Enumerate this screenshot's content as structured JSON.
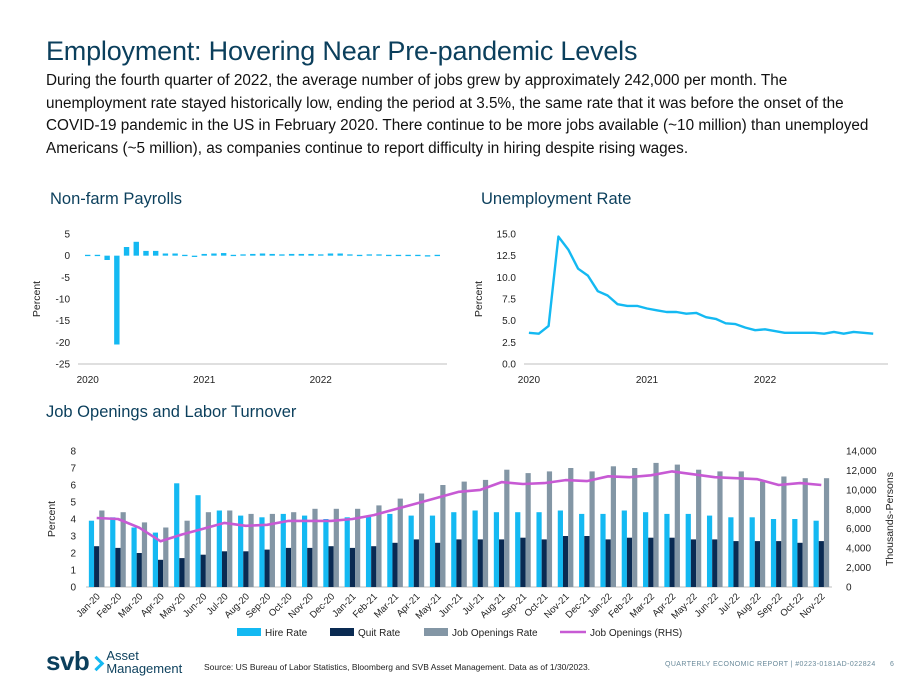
{
  "title": "Employment: Hovering Near Pre-pandemic Levels",
  "intro": "During the fourth quarter of 2022, the average number of jobs grew by approximately 242,000 per month. The unemployment rate stayed historically low, ending the period at 3.5%, the same rate that it was before the onset of the COVID-19 pandemic in the US in February 2020. There continue to be more jobs available (~10 million) than unemployed Americans (~5 million), as companies continue to report difficulty in hiring despite rising wages.",
  "footer": {
    "logo_main": "svb",
    "logo_line1": "Asset",
    "logo_line2": "Management",
    "source": "Source: US Bureau of Labor Statistics, Bloomberg and SVB Asset Management. Data as of 1/30/2023.",
    "report": "QUARTERLY ECONOMIC REPORT | #0223-0181AD-022824",
    "page": "6"
  },
  "colors": {
    "heading": "#0b3f5c",
    "bright_blue": "#14b9f2",
    "navy": "#0a2a52",
    "gray": "#8396a5",
    "purple": "#c75ad4"
  },
  "chart_data": [
    {
      "id": "payrolls",
      "type": "bar",
      "title": "Non-farm Payrolls",
      "ylabel": "Percent",
      "ylim": [
        -25,
        5
      ],
      "yticks": [
        "5",
        "0",
        "-5",
        "-10",
        "-15",
        "-20",
        "-25"
      ],
      "ytick_values": [
        5,
        0,
        -5,
        -10,
        -15,
        -20,
        -25
      ],
      "xtick_labels": [
        "2020",
        "2021",
        "2022"
      ],
      "xtick_index": [
        0,
        12,
        24
      ],
      "values": [
        0.2,
        0.2,
        -1.0,
        -20.5,
        2.0,
        3.2,
        1.1,
        1.1,
        0.5,
        0.5,
        0.2,
        -0.2,
        0.4,
        0.5,
        0.6,
        0.2,
        0.3,
        0.4,
        0.5,
        0.4,
        0.3,
        0.4,
        0.4,
        0.4,
        0.3,
        0.5,
        0.5,
        0.3,
        0.2,
        0.3,
        0.3,
        0.2,
        0.2,
        0.2,
        0.2,
        0.1,
        0.2
      ]
    },
    {
      "id": "unemployment",
      "type": "line",
      "title": "Unemployment Rate",
      "ylabel": "Percent",
      "ylim": [
        0,
        15
      ],
      "yticks": [
        "15.0",
        "12.5",
        "10.0",
        "7.5",
        "5.0",
        "2.5",
        "0.0"
      ],
      "ytick_values": [
        15,
        12.5,
        10,
        7.5,
        5,
        2.5,
        0
      ],
      "xtick_labels": [
        "2020",
        "2021",
        "2022"
      ],
      "xtick_index": [
        0,
        12,
        24
      ],
      "values": [
        3.6,
        3.5,
        4.4,
        14.7,
        13.2,
        11.0,
        10.2,
        8.4,
        7.9,
        6.9,
        6.7,
        6.7,
        6.4,
        6.2,
        6.0,
        6.0,
        5.8,
        5.9,
        5.4,
        5.2,
        4.7,
        4.6,
        4.2,
        3.9,
        4.0,
        3.8,
        3.6,
        3.6,
        3.6,
        3.6,
        3.5,
        3.7,
        3.5,
        3.7,
        3.6,
        3.5
      ]
    },
    {
      "id": "jolts",
      "type": "bar",
      "title": "Job Openings and Labor Turnover",
      "ylabel": "Percent",
      "y2label": "Thousands-Persons",
      "ylim": [
        0,
        8
      ],
      "y2lim": [
        0,
        14000
      ],
      "yticks": [
        "8",
        "7",
        "6",
        "5",
        "4",
        "3",
        "2",
        "1",
        "0"
      ],
      "ytick_values": [
        8,
        7,
        6,
        5,
        4,
        3,
        2,
        1,
        0
      ],
      "y2ticks": [
        "14,000",
        "12,000",
        "10,000",
        "8,000",
        "6,000",
        "4,000",
        "2,000",
        "0"
      ],
      "y2tick_values": [
        14000,
        12000,
        10000,
        8000,
        6000,
        4000,
        2000,
        0
      ],
      "categories": [
        "Jan-20",
        "Feb-20",
        "Mar-20",
        "Apr-20",
        "May-20",
        "Jun-20",
        "Jul-20",
        "Aug-20",
        "Sep-20",
        "Oct-20",
        "Nov-20",
        "Dec-20",
        "Jan-21",
        "Feb-21",
        "Mar-21",
        "Apr-21",
        "May-21",
        "Jun-21",
        "Jul-21",
        "Aug-21",
        "Sep-21",
        "Oct-21",
        "Nov-21",
        "Dec-21",
        "Jan-22",
        "Feb-22",
        "Mar-22",
        "Apr-22",
        "May-22",
        "Jun-22",
        "Jul-22",
        "Aug-22",
        "Sep-22",
        "Oct-22",
        "Nov-22"
      ],
      "series": [
        {
          "name": "Hire Rate",
          "axis": "left",
          "kind": "bar",
          "values": [
            3.9,
            4.1,
            3.5,
            3.2,
            6.1,
            5.4,
            4.5,
            4.2,
            4.1,
            4.3,
            4.2,
            4.0,
            4.1,
            4.2,
            4.3,
            4.2,
            4.2,
            4.4,
            4.5,
            4.4,
            4.4,
            4.4,
            4.5,
            4.3,
            4.3,
            4.5,
            4.4,
            4.3,
            4.3,
            4.2,
            4.1,
            4.1,
            4.0,
            4.0,
            3.9
          ]
        },
        {
          "name": "Quit Rate",
          "axis": "left",
          "kind": "bar",
          "values": [
            2.4,
            2.3,
            2.0,
            1.6,
            1.7,
            1.9,
            2.1,
            2.1,
            2.2,
            2.3,
            2.3,
            2.4,
            2.3,
            2.4,
            2.6,
            2.8,
            2.6,
            2.8,
            2.8,
            2.8,
            2.9,
            2.8,
            3.0,
            3.0,
            2.8,
            2.9,
            2.9,
            2.9,
            2.8,
            2.8,
            2.7,
            2.7,
            2.7,
            2.6,
            2.7
          ]
        },
        {
          "name": "Job Openings Rate",
          "axis": "left",
          "kind": "bar",
          "values": [
            4.5,
            4.4,
            3.8,
            3.5,
            3.9,
            4.4,
            4.5,
            4.3,
            4.3,
            4.4,
            4.6,
            4.6,
            4.6,
            4.8,
            5.2,
            5.5,
            6.0,
            6.2,
            6.3,
            6.9,
            6.7,
            6.8,
            7.0,
            6.8,
            7.1,
            7.0,
            7.3,
            7.2,
            6.9,
            6.8,
            6.8,
            6.2,
            6.5,
            6.4,
            6.4
          ]
        },
        {
          "name": "Job Openings (RHS)",
          "axis": "right",
          "kind": "line",
          "values": [
            7100,
            7000,
            6100,
            4700,
            5400,
            6000,
            6600,
            6300,
            6400,
            6800,
            6800,
            6800,
            7000,
            7400,
            8000,
            8600,
            9200,
            9800,
            10000,
            10800,
            10600,
            10700,
            11000,
            10900,
            11400,
            11300,
            11500,
            11900,
            11600,
            11300,
            11200,
            11100,
            10500,
            10700,
            10500
          ]
        }
      ]
    }
  ]
}
